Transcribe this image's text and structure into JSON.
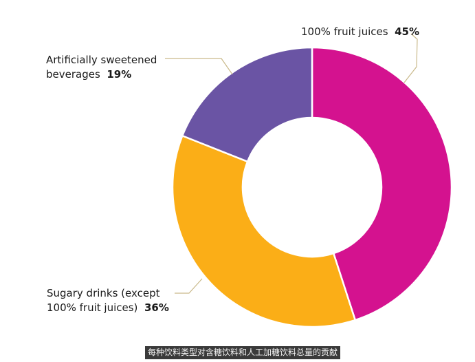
{
  "chart_data": {
    "type": "pie",
    "donut": true,
    "slices": [
      {
        "label": "100% fruit juices",
        "label_lines": [
          "100% fruit juices"
        ],
        "value": 45,
        "value_label": "45%",
        "color": "#d4128f"
      },
      {
        "label": "Sugary drinks (except 100% fruit juices)",
        "label_lines": [
          "Sugary drinks (except",
          "100% fruit juices)"
        ],
        "value": 36,
        "value_label": "36%",
        "color": "#fbae17"
      },
      {
        "label": "Artificially sweetened beverages",
        "label_lines": [
          "Artificially sweetened",
          "beverages"
        ],
        "value": 19,
        "value_label": "19%",
        "color": "#6a54a4"
      }
    ],
    "start_angle": "12 o'clock",
    "direction": "clockwise",
    "separator_color": "#ffffff",
    "leader_line_color": "#c9b98a"
  },
  "caption": "每种饮料类型对含糖饮料和人工加糖饮料总量的贡献"
}
